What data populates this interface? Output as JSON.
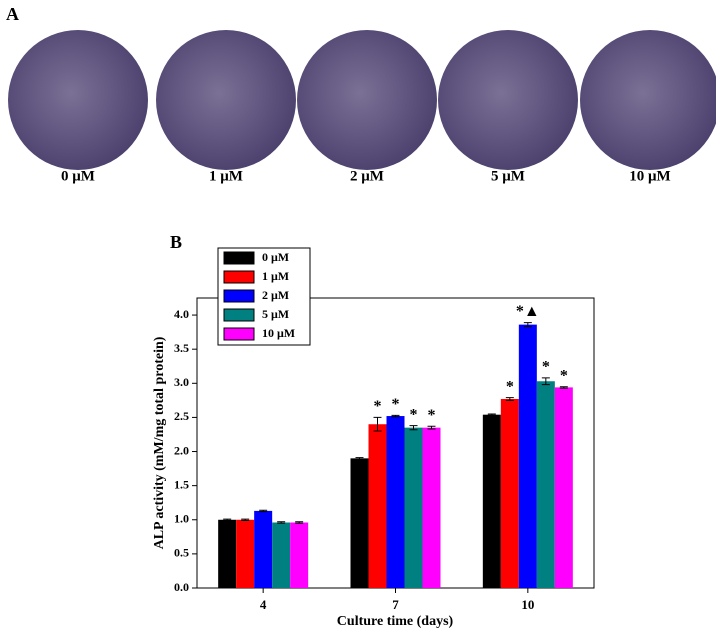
{
  "panel_a": {
    "label": "A",
    "wells": [
      "0 μM",
      "1 μM",
      "2 μM",
      "5 μM",
      "10 μM"
    ]
  },
  "chart_data": {
    "type": "bar",
    "panel_label": "B",
    "x_label": "Culture time (days)",
    "y_label": "ALP activity (mM/mg total protein)",
    "categories": [
      "4",
      "7",
      "10"
    ],
    "series": [
      {
        "name": "0 μM",
        "color": "#000000",
        "values": [
          1.0,
          1.9,
          2.54
        ],
        "errors": [
          0.01,
          0.01,
          0.01
        ],
        "annotations": [
          null,
          null,
          null
        ]
      },
      {
        "name": "1 μM",
        "color": "#ff0000",
        "values": [
          1.0,
          2.4,
          2.77
        ],
        "errors": [
          0.01,
          0.1,
          0.02
        ],
        "annotations": [
          null,
          "*",
          "*"
        ]
      },
      {
        "name": "2 μM",
        "color": "#0000ff",
        "values": [
          1.13,
          2.52,
          3.86
        ],
        "errors": [
          0.01,
          0.01,
          0.03
        ],
        "annotations": [
          null,
          "*",
          "*▲"
        ]
      },
      {
        "name": "5 μM",
        "color": "#008080",
        "values": [
          0.96,
          2.35,
          3.03
        ],
        "errors": [
          0.01,
          0.03,
          0.05
        ],
        "annotations": [
          null,
          "*",
          "*"
        ]
      },
      {
        "name": "10 μM",
        "color": "#ff00ff",
        "values": [
          0.96,
          2.35,
          2.94
        ],
        "errors": [
          0.01,
          0.02,
          0.01
        ],
        "annotations": [
          null,
          "*",
          "*"
        ]
      }
    ],
    "ylim": [
      0,
      4.25
    ],
    "yticks": [
      {
        "value": 0,
        "label": "0.0"
      },
      0.5,
      {
        "value": 1,
        "label": "1.0"
      },
      1.5,
      {
        "value": 2,
        "label": "2.0"
      },
      2.5,
      {
        "value": 3,
        "label": "3.0"
      },
      3.5,
      {
        "value": 4,
        "label": "4.0"
      }
    ],
    "legend": "upper left"
  }
}
